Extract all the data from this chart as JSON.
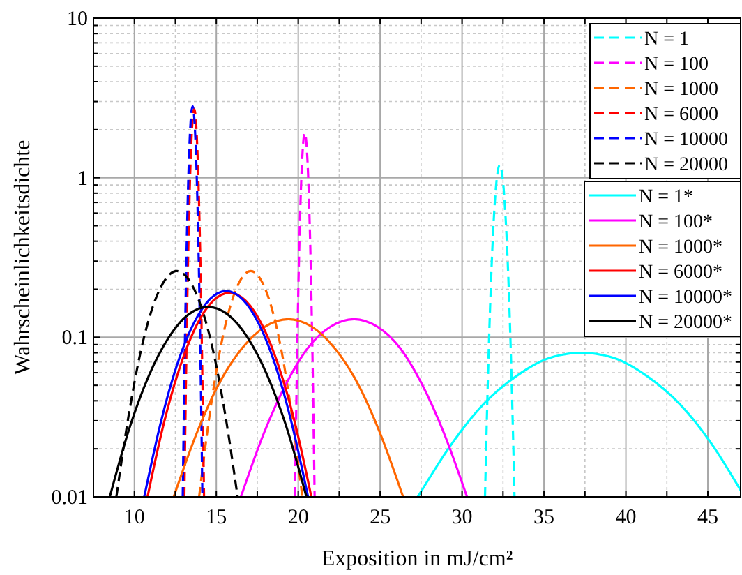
{
  "chart_data": {
    "type": "line",
    "xlabel": "Exposition in mJ/cm²",
    "ylabel": "Wahrscheinlichkeitsdichte",
    "log": "y",
    "grid": true,
    "legend": "top right",
    "xlim": [
      7.5,
      47
    ],
    "ylim": [
      0.01,
      10
    ],
    "xticks": [
      10,
      {
        "value": 12.5,
        "label": null
      },
      15,
      {
        "value": 17.5,
        "label": null
      },
      20,
      {
        "value": 22.5,
        "label": null
      },
      25,
      {
        "value": 27.5,
        "label": null
      },
      30,
      {
        "value": 32.5,
        "label": null
      },
      35,
      {
        "value": 37.5,
        "label": null
      },
      40,
      {
        "value": 42.5,
        "label": null
      },
      45
    ],
    "yticks": [
      0.01,
      0.1,
      1,
      10
    ],
    "series": [
      {
        "name": "N = 1",
        "color": "#00ffff",
        "line_style": "dashed",
        "x": [
          31.4,
          31.58,
          31.76,
          31.94,
          32.12,
          32.3,
          32.48,
          32.66,
          32.84,
          33.02,
          33.2
        ],
        "values": [
          0.01,
          0.056,
          0.214,
          0.557,
          0.99,
          1.2,
          0.99,
          0.557,
          0.214,
          0.056,
          0.01
        ]
      },
      {
        "name": "N = 100",
        "color": "#ff00ff",
        "line_style": "dashed",
        "x": [
          19.8,
          19.92,
          20.04,
          20.16,
          20.28,
          20.4,
          20.52,
          20.64,
          20.76,
          20.88,
          21.0
        ],
        "values": [
          0.01,
          0.066,
          0.288,
          0.82,
          1.54,
          1.9,
          1.54,
          0.82,
          0.288,
          0.066,
          0.01
        ]
      },
      {
        "name": "N = 1000",
        "color": "#ff6600",
        "line_style": "dashed",
        "x": [
          13.95,
          14.58,
          15.21,
          15.84,
          16.47,
          17.1,
          17.73,
          18.36,
          18.99,
          19.62,
          20.25
        ],
        "values": [
          0.01,
          0.032,
          0.081,
          0.155,
          0.228,
          0.26,
          0.228,
          0.155,
          0.081,
          0.032,
          0.01
        ]
      },
      {
        "name": "N = 6000",
        "color": "#ff0000",
        "line_style": "dashed",
        "x": [
          13.05,
          13.17,
          13.29,
          13.41,
          13.53,
          13.65,
          13.77,
          13.89,
          14.01,
          14.13,
          14.25
        ],
        "values": [
          0.01,
          0.075,
          0.36,
          1.1,
          2.16,
          2.7,
          2.16,
          1.1,
          0.36,
          0.075,
          0.01
        ]
      },
      {
        "name": "N = 10000",
        "color": "#0000ff",
        "line_style": "dashed",
        "x": [
          12.95,
          13.07,
          13.19,
          13.31,
          13.43,
          13.55,
          13.67,
          13.79,
          13.91,
          14.03,
          14.15
        ],
        "values": [
          0.01,
          0.076,
          0.368,
          1.14,
          2.23,
          2.8,
          2.23,
          1.14,
          0.368,
          0.076,
          0.01
        ]
      },
      {
        "name": "N = 20000",
        "color": "#000000",
        "line_style": "dashed",
        "x": [
          8.9,
          9.64,
          10.38,
          11.12,
          11.86,
          12.6,
          13.34,
          14.08,
          14.82,
          15.56,
          16.3
        ],
        "values": [
          0.01,
          0.032,
          0.081,
          0.155,
          0.228,
          0.26,
          0.228,
          0.155,
          0.081,
          0.032,
          0.01
        ]
      },
      {
        "name": "N = 1*",
        "color": "#00ffff",
        "line_style": "solid",
        "x": [
          27.3,
          29.3,
          31.3,
          33.3,
          35.3,
          37.3,
          39.3,
          41.3,
          43.3,
          45.3,
          47.0
        ],
        "values": [
          0.01,
          0.021,
          0.038,
          0.057,
          0.074,
          0.08,
          0.074,
          0.057,
          0.038,
          0.021,
          0.011
        ]
      },
      {
        "name": "N = 100*",
        "color": "#ff00ff",
        "line_style": "solid",
        "x": [
          16.5,
          17.9,
          19.3,
          20.6,
          22.0,
          23.4,
          24.8,
          26.2,
          27.5,
          28.9,
          30.3
        ],
        "values": [
          0.01,
          0.025,
          0.052,
          0.086,
          0.117,
          0.13,
          0.117,
          0.086,
          0.052,
          0.025,
          0.01
        ]
      },
      {
        "name": "N = 1000*",
        "color": "#ff6600",
        "line_style": "solid",
        "x": [
          12.4,
          13.8,
          15.2,
          16.6,
          18.0,
          19.4,
          20.8,
          22.2,
          23.6,
          25.0,
          26.4
        ],
        "values": [
          0.01,
          0.025,
          0.052,
          0.086,
          0.117,
          0.13,
          0.117,
          0.086,
          0.052,
          0.025,
          0.01
        ]
      },
      {
        "name": "N = 6000*",
        "color": "#ff0000",
        "line_style": "solid",
        "x": [
          10.8,
          11.8,
          12.8,
          13.8,
          14.8,
          15.8,
          16.8,
          17.8,
          18.8,
          19.8,
          20.8
        ],
        "values": [
          0.01,
          0.029,
          0.066,
          0.119,
          0.169,
          0.19,
          0.169,
          0.119,
          0.066,
          0.029,
          0.01
        ]
      },
      {
        "name": "N = 10000*",
        "color": "#0000ff",
        "line_style": "solid",
        "x": [
          10.6,
          11.6,
          12.6,
          13.6,
          14.6,
          15.6,
          16.6,
          17.6,
          18.6,
          19.6,
          20.6
        ],
        "values": [
          0.01,
          0.029,
          0.067,
          0.121,
          0.173,
          0.195,
          0.173,
          0.121,
          0.067,
          0.029,
          0.01
        ]
      },
      {
        "name": "N = 20000*",
        "color": "#000000",
        "line_style": "solid",
        "x": [
          8.5,
          9.7,
          10.9,
          12.1,
          13.3,
          14.5,
          15.7,
          16.9,
          18.1,
          19.3,
          20.5
        ],
        "values": [
          0.01,
          0.027,
          0.058,
          0.1,
          0.139,
          0.155,
          0.139,
          0.1,
          0.058,
          0.027,
          0.01
        ]
      }
    ]
  }
}
